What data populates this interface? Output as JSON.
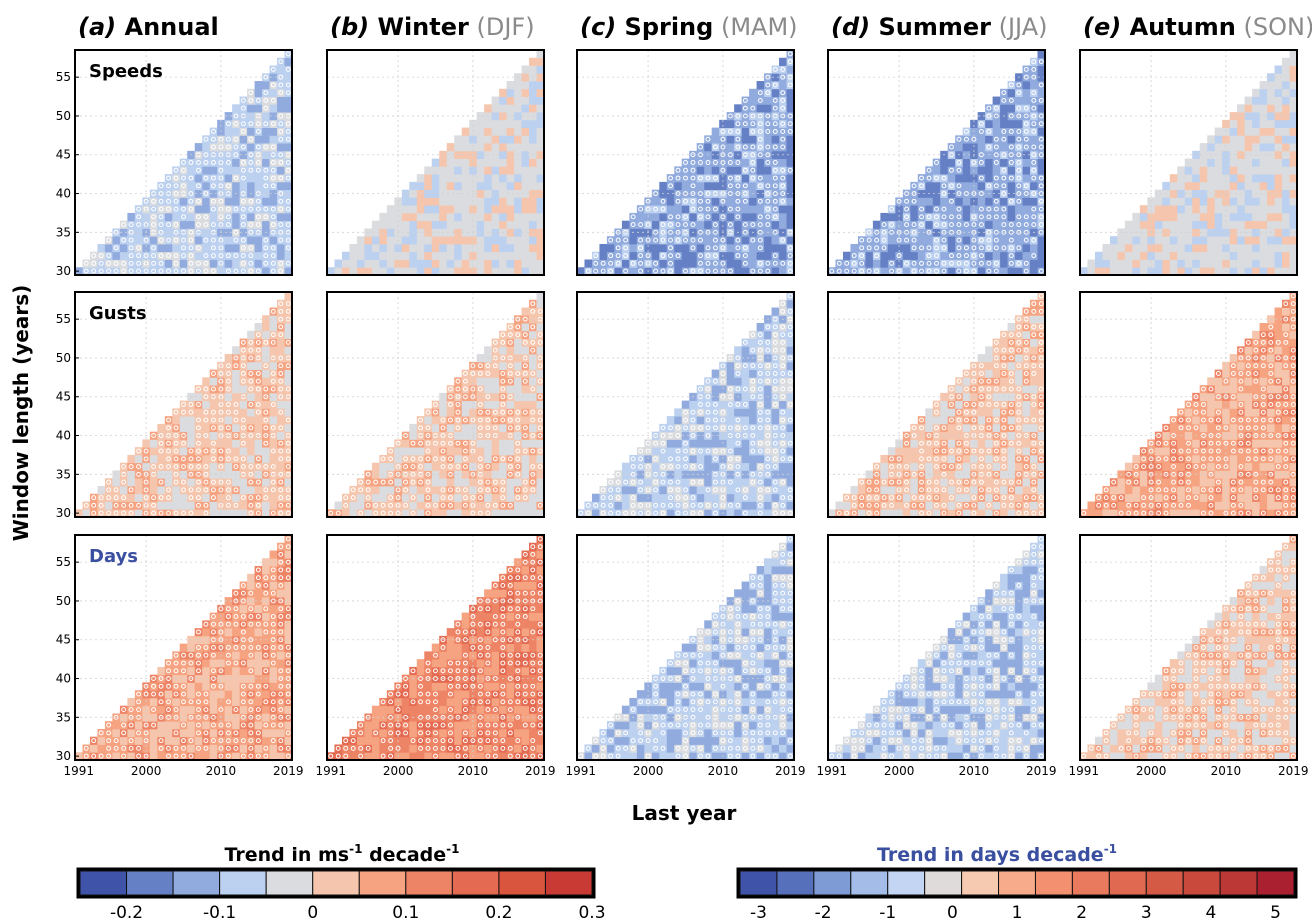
{
  "chart_data": {
    "type": "heatmap",
    "ylabel": "Window length (years)",
    "xlabel": "Last year",
    "x_range": [
      1991,
      2019
    ],
    "y_range": [
      30,
      58
    ],
    "x_ticks": [
      "1991",
      "2000",
      "2010",
      "2019"
    ],
    "y_ticks": [
      "30",
      "35",
      "40",
      "45",
      "50",
      "55"
    ],
    "grid": true,
    "columns": [
      {
        "letter": "(a)",
        "name": "Annual",
        "season": ""
      },
      {
        "letter": "(b)",
        "name": "Winter",
        "season": "(DJF)"
      },
      {
        "letter": "(c)",
        "name": "Spring",
        "season": "(MAM)"
      },
      {
        "letter": "(d)",
        "name": "Summer",
        "season": "(JJA)"
      },
      {
        "letter": "(e)",
        "name": "Autumn",
        "season": "(SON)"
      }
    ],
    "rows": [
      {
        "label": "Speeds",
        "color": "#000000"
      },
      {
        "label": "Gusts",
        "color": "#000000"
      },
      {
        "label": "Days",
        "color": "#3a4fa0"
      }
    ],
    "panel_trend_levels": [
      [
        -1,
        0,
        -2,
        -2,
        0
      ],
      [
        1,
        1,
        -1,
        1,
        2
      ],
      [
        2,
        3,
        -1,
        -1,
        1
      ]
    ],
    "colorbar_speed": {
      "title_main": "Trend in ms",
      "title_sup1": "-1",
      "title_mid": " decade",
      "title_sup2": "-1",
      "ticks": [
        "-0.2",
        "-0.1",
        "0",
        "0.1",
        "0.2",
        "0.3"
      ],
      "colors": [
        "#3f54a8",
        "#6580c4",
        "#91abde",
        "#bcd0ef",
        "#dadcdf",
        "#f5c6ad",
        "#f6a382",
        "#ee8466",
        "#e46b52",
        "#d9553e",
        "#c83a33"
      ]
    },
    "colorbar_days": {
      "title_main": "Trend in days decade",
      "title_sup": "-1",
      "title_color": "#3a4fa0",
      "ticks": [
        "-3",
        "-2",
        "-1",
        "0",
        "1",
        "2",
        "3",
        "4",
        "5"
      ],
      "colors": [
        "#3f54a8",
        "#5670bb",
        "#7e9bd6",
        "#a3bde8",
        "#c3d5f2",
        "#dedbda",
        "#f6c9b1",
        "#f7ab8b",
        "#f39070",
        "#ea7a5e",
        "#e06a51",
        "#d55a46",
        "#c94a3c",
        "#bc3836",
        "#ab2030"
      ]
    }
  }
}
